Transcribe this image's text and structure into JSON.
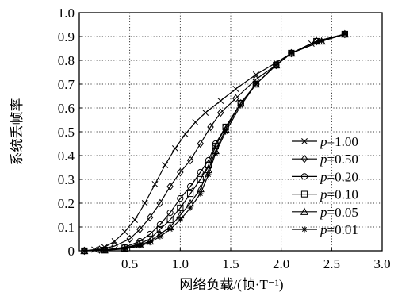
{
  "chart_data": {
    "type": "line",
    "title": "",
    "xlabel": "网络负载/(帧·T⁻¹)",
    "ylabel": "系统丢帧率",
    "xlim": [
      0,
      3.0
    ],
    "ylim": [
      0,
      1.0
    ],
    "x_ticks": [
      "0.5",
      "1.0",
      "1.5",
      "2.0",
      "2.5",
      "3.0"
    ],
    "y_ticks": [
      "0",
      "0.1",
      "0.2",
      "0.3",
      "0.4",
      "0.5",
      "0.6",
      "0.7",
      "0.8",
      "0.9",
      "1.0"
    ],
    "grid": true,
    "legend_position": "right",
    "series": [
      {
        "name": "p=1.00",
        "marker": "x",
        "x": [
          0.05,
          0.15,
          0.25,
          0.35,
          0.45,
          0.55,
          0.65,
          0.75,
          0.85,
          0.95,
          1.05,
          1.15,
          1.25,
          1.4,
          1.55,
          1.75,
          1.95,
          2.1,
          2.3,
          2.63
        ],
        "y": [
          0.0,
          0.005,
          0.015,
          0.04,
          0.08,
          0.13,
          0.2,
          0.28,
          0.36,
          0.43,
          0.49,
          0.54,
          0.58,
          0.63,
          0.68,
          0.74,
          0.79,
          0.83,
          0.87,
          0.91
        ]
      },
      {
        "name": "p=0.50",
        "marker": "diamond",
        "x": [
          0.05,
          0.2,
          0.35,
          0.5,
          0.6,
          0.7,
          0.8,
          0.9,
          1.0,
          1.1,
          1.2,
          1.3,
          1.4,
          1.55,
          1.75,
          1.95,
          2.1,
          2.35,
          2.63
        ],
        "y": [
          0.0,
          0.005,
          0.02,
          0.05,
          0.09,
          0.14,
          0.2,
          0.27,
          0.33,
          0.38,
          0.45,
          0.52,
          0.58,
          0.64,
          0.72,
          0.78,
          0.83,
          0.88,
          0.91
        ]
      },
      {
        "name": "p=0.20",
        "marker": "circle",
        "x": [
          0.05,
          0.25,
          0.45,
          0.6,
          0.7,
          0.8,
          0.9,
          1.0,
          1.1,
          1.2,
          1.28,
          1.35,
          1.45,
          1.6,
          1.75,
          1.95,
          2.1,
          2.35,
          2.63
        ],
        "y": [
          0.0,
          0.004,
          0.015,
          0.04,
          0.07,
          0.11,
          0.16,
          0.22,
          0.27,
          0.33,
          0.38,
          0.45,
          0.52,
          0.62,
          0.7,
          0.78,
          0.83,
          0.88,
          0.91
        ]
      },
      {
        "name": "p=0.10",
        "marker": "square",
        "x": [
          0.05,
          0.25,
          0.45,
          0.6,
          0.7,
          0.8,
          0.9,
          1.0,
          1.1,
          1.2,
          1.28,
          1.35,
          1.45,
          1.6,
          1.75,
          1.95,
          2.1,
          2.35,
          2.63
        ],
        "y": [
          0.0,
          0.003,
          0.012,
          0.03,
          0.05,
          0.09,
          0.13,
          0.18,
          0.24,
          0.3,
          0.36,
          0.44,
          0.52,
          0.62,
          0.7,
          0.78,
          0.83,
          0.88,
          0.91
        ]
      },
      {
        "name": "p=0.05",
        "marker": "triangle",
        "x": [
          0.05,
          0.25,
          0.45,
          0.6,
          0.7,
          0.8,
          0.9,
          1.0,
          1.1,
          1.2,
          1.28,
          1.35,
          1.45,
          1.6,
          1.75,
          1.95,
          2.1,
          2.4,
          2.63
        ],
        "y": [
          0.0,
          0.003,
          0.01,
          0.025,
          0.04,
          0.07,
          0.1,
          0.15,
          0.2,
          0.26,
          0.34,
          0.42,
          0.51,
          0.62,
          0.7,
          0.78,
          0.83,
          0.88,
          0.91
        ]
      },
      {
        "name": "p=0.01",
        "marker": "star",
        "x": [
          0.05,
          0.25,
          0.45,
          0.6,
          0.7,
          0.8,
          0.9,
          1.0,
          1.1,
          1.2,
          1.28,
          1.35,
          1.45,
          1.6,
          1.75,
          1.95,
          2.1,
          2.4,
          2.63
        ],
        "y": [
          0.0,
          0.002,
          0.008,
          0.02,
          0.035,
          0.06,
          0.09,
          0.13,
          0.18,
          0.24,
          0.32,
          0.41,
          0.5,
          0.61,
          0.7,
          0.78,
          0.83,
          0.88,
          0.91
        ]
      }
    ]
  }
}
